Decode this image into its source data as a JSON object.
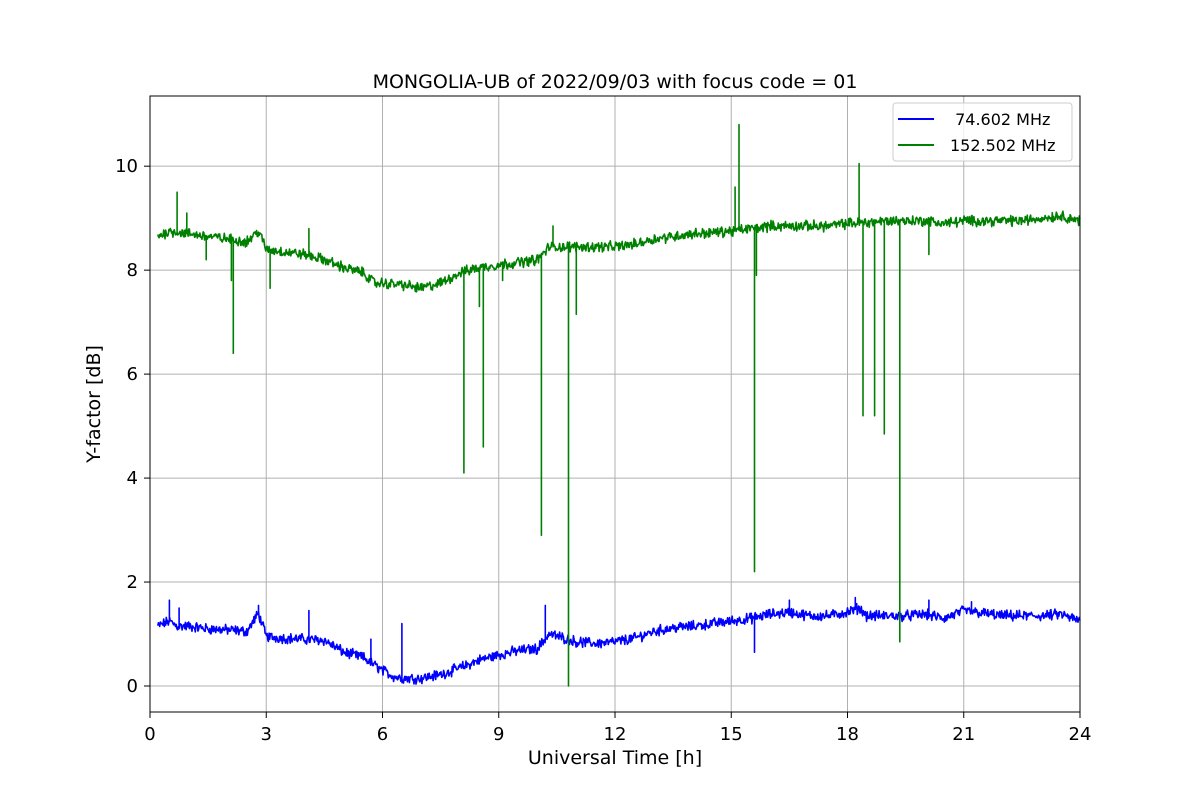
{
  "chart_data": {
    "type": "line",
    "title": "MONGOLIA-UB of 2022/09/03 with focus code = 01",
    "xlabel": "Universal Time [h]",
    "ylabel": "Y-factor [dB]",
    "xlim": [
      0,
      24
    ],
    "ylim": [
      -0.5,
      11.35
    ],
    "xticks": [
      0,
      3,
      6,
      9,
      12,
      15,
      18,
      21,
      24
    ],
    "yticks": [
      0,
      2,
      4,
      6,
      8,
      10
    ],
    "xtick_labels": [
      "0",
      "3",
      "6",
      "9",
      "12",
      "15",
      "18",
      "21",
      "24"
    ],
    "ytick_labels": [
      "0",
      "2",
      "4",
      "6",
      "8",
      "10"
    ],
    "grid": true,
    "legend_position": "top-right",
    "series": [
      {
        "name": " 74.602 MHz",
        "color": "#0000ff",
        "x": [
          0.2,
          0.5,
          0.7,
          1.0,
          1.5,
          2.0,
          2.5,
          2.8,
          3.0,
          3.5,
          4.0,
          4.5,
          5.0,
          5.5,
          6.0,
          6.3,
          6.5,
          7.0,
          7.5,
          8.0,
          8.5,
          9.0,
          9.5,
          10.0,
          10.3,
          10.8,
          11.0,
          11.5,
          12.0,
          12.5,
          13.0,
          13.5,
          14.0,
          14.5,
          15.0,
          15.5,
          16.0,
          16.5,
          17.0,
          17.5,
          18.0,
          18.3,
          18.5,
          19.0,
          19.5,
          20.0,
          20.5,
          21.0,
          21.5,
          22.0,
          22.5,
          23.0,
          23.5,
          24.0
        ],
        "y": [
          1.15,
          1.25,
          1.15,
          1.15,
          1.1,
          1.08,
          1.05,
          1.4,
          0.95,
          0.92,
          0.9,
          0.88,
          0.65,
          0.55,
          0.3,
          0.18,
          0.15,
          0.15,
          0.22,
          0.35,
          0.5,
          0.6,
          0.68,
          0.72,
          1.0,
          0.9,
          0.85,
          0.82,
          0.85,
          0.92,
          1.05,
          1.12,
          1.15,
          1.2,
          1.25,
          1.3,
          1.38,
          1.42,
          1.35,
          1.35,
          1.42,
          1.5,
          1.35,
          1.35,
          1.35,
          1.38,
          1.3,
          1.45,
          1.4,
          1.35,
          1.35,
          1.35,
          1.38,
          1.25
        ],
        "spikes": [
          [
            0.5,
            1.65
          ],
          [
            0.75,
            1.5
          ],
          [
            2.8,
            1.55
          ],
          [
            4.1,
            1.45
          ],
          [
            5.7,
            0.9
          ],
          [
            6.5,
            1.2
          ],
          [
            10.2,
            1.55
          ],
          [
            15.6,
            0.65
          ],
          [
            16.5,
            1.65
          ],
          [
            18.2,
            1.7
          ],
          [
            20.1,
            1.65
          ],
          [
            21.2,
            1.62
          ]
        ]
      },
      {
        "name": "152.502 MHz",
        "color": "#008000",
        "x": [
          0.2,
          0.5,
          1.0,
          1.5,
          2.0,
          2.5,
          2.8,
          3.0,
          3.5,
          4.0,
          4.5,
          5.0,
          5.5,
          5.8,
          6.0,
          6.5,
          7.0,
          7.5,
          8.0,
          8.5,
          9.0,
          9.5,
          10.0,
          10.3,
          10.5,
          11.0,
          11.5,
          12.0,
          12.5,
          13.0,
          13.5,
          14.0,
          14.5,
          15.0,
          15.5,
          16.0,
          16.5,
          17.0,
          17.5,
          18.0,
          18.5,
          19.0,
          19.5,
          20.0,
          20.5,
          21.0,
          21.5,
          22.0,
          22.5,
          23.0,
          23.5,
          24.0
        ],
        "y": [
          8.65,
          8.75,
          8.7,
          8.65,
          8.6,
          8.55,
          8.75,
          8.4,
          8.35,
          8.3,
          8.2,
          8.05,
          7.95,
          7.75,
          7.75,
          7.72,
          7.65,
          7.75,
          7.95,
          8.05,
          8.1,
          8.15,
          8.2,
          8.45,
          8.45,
          8.45,
          8.45,
          8.45,
          8.5,
          8.6,
          8.65,
          8.7,
          8.72,
          8.75,
          8.8,
          8.85,
          8.85,
          8.85,
          8.85,
          8.9,
          8.92,
          8.95,
          8.95,
          8.95,
          8.9,
          8.95,
          8.95,
          8.95,
          8.95,
          9.0,
          9.05,
          8.95
        ],
        "spikes": [
          [
            0.7,
            9.5
          ],
          [
            0.95,
            9.1
          ],
          [
            1.45,
            8.2
          ],
          [
            2.1,
            7.8
          ],
          [
            2.15,
            6.4
          ],
          [
            3.1,
            7.65
          ],
          [
            4.1,
            8.8
          ],
          [
            8.1,
            4.1
          ],
          [
            8.5,
            7.3
          ],
          [
            8.6,
            4.6
          ],
          [
            9.1,
            7.8
          ],
          [
            10.1,
            2.9
          ],
          [
            10.4,
            8.85
          ],
          [
            10.8,
            0.0
          ],
          [
            11.0,
            7.15
          ],
          [
            15.1,
            9.6
          ],
          [
            15.2,
            10.8
          ],
          [
            15.6,
            2.2
          ],
          [
            15.65,
            7.9
          ],
          [
            18.3,
            10.05
          ],
          [
            18.4,
            5.2
          ],
          [
            18.7,
            5.2
          ],
          [
            18.95,
            4.85
          ],
          [
            19.35,
            0.85
          ],
          [
            20.1,
            8.3
          ]
        ]
      }
    ]
  }
}
